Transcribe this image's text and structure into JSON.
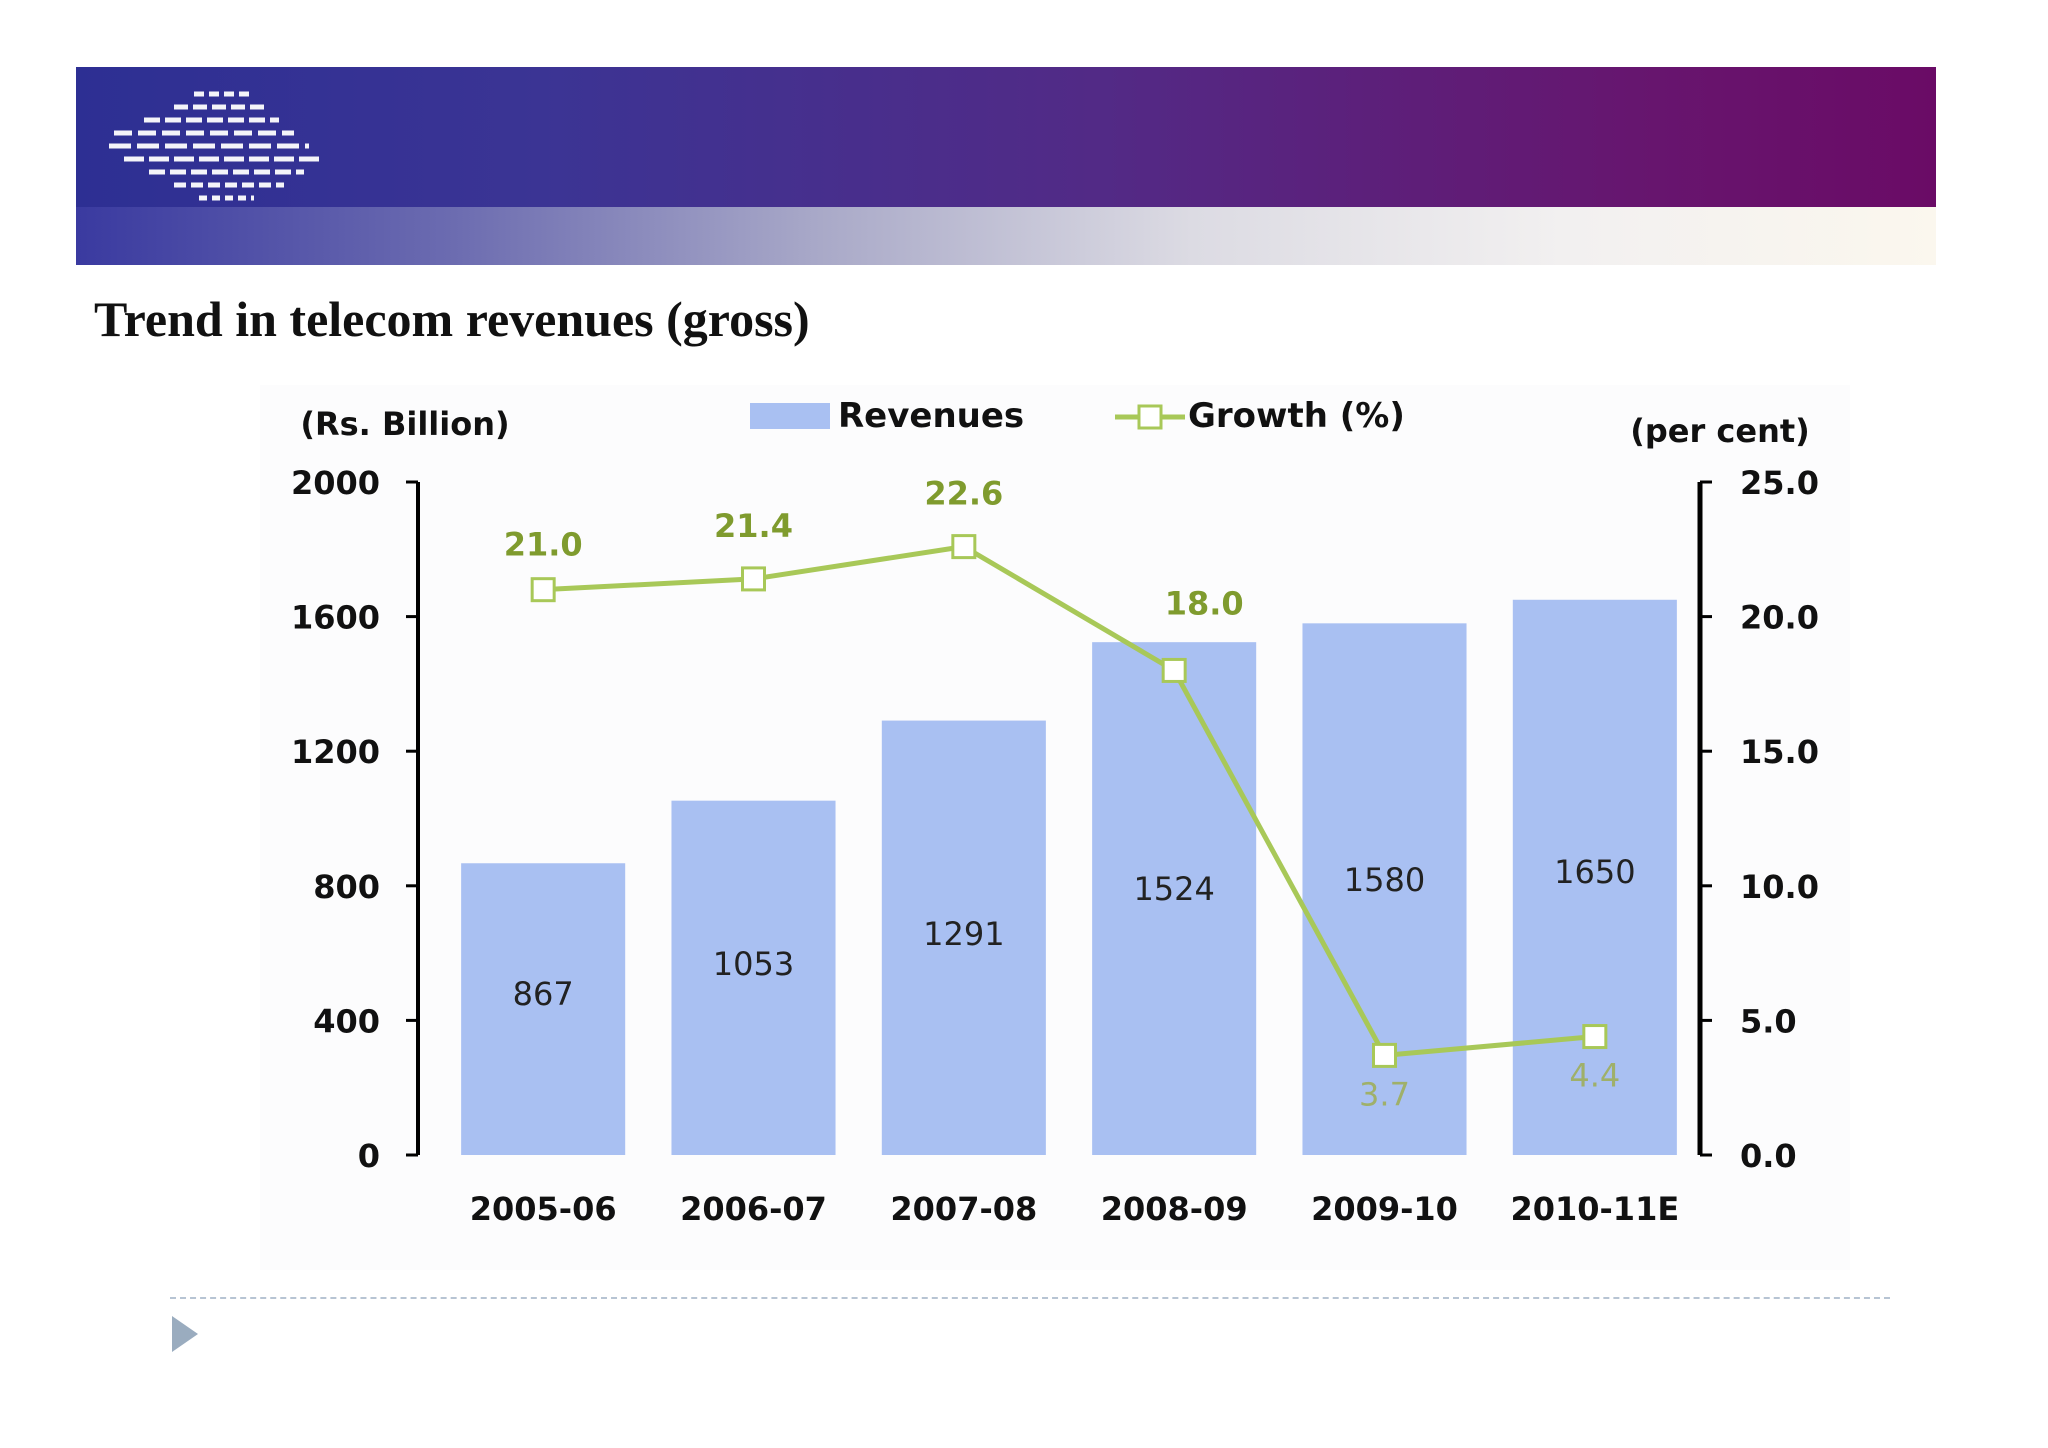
{
  "slide": {
    "title": "Trend in telecom revenues (gross)"
  },
  "colors": {
    "banner_start": "#2d2f93",
    "banner_end": "#6a0b66",
    "bar": "#a9c0f2",
    "line": "#a8c858",
    "growth_label": "#7f9b2e",
    "axis": "#000000"
  },
  "icons": {
    "logo": "striped-logo-icon",
    "bullet": "triangle-bullet-icon"
  },
  "chart_data": {
    "type": "bar",
    "title": "",
    "categories": [
      "2005-06",
      "2006-07",
      "2007-08",
      "2008-09",
      "2009-10",
      "2010-11E"
    ],
    "series": [
      {
        "name": "Revenues",
        "type": "bar",
        "axis": "left",
        "values": [
          867,
          1053,
          1291,
          1524,
          1580,
          1650
        ]
      },
      {
        "name": "Growth (%)",
        "type": "line",
        "axis": "right",
        "values": [
          21.0,
          21.4,
          22.6,
          18.0,
          3.7,
          4.4
        ]
      }
    ],
    "bar_value_labels": [
      "867",
      "1053",
      "1291",
      "1524",
      "1580",
      "1650"
    ],
    "growth_value_labels": [
      "21.0",
      "21.4",
      "22.6",
      "18.0",
      "3.7",
      "4.4"
    ],
    "y_left": {
      "label": "(Rs. Billion)",
      "ylim": [
        0,
        2000
      ],
      "ticks": [
        "0",
        "400",
        "800",
        "1200",
        "1600",
        "2000"
      ]
    },
    "y_right": {
      "label": "(per cent)",
      "ylim": [
        0,
        25
      ],
      "ticks": [
        "0.0",
        "5.0",
        "10.0",
        "15.0",
        "20.0",
        "25.0"
      ]
    },
    "legend": {
      "placement": "top-center",
      "items": [
        "Revenues",
        "Growth (%)"
      ]
    },
    "grid": false
  }
}
